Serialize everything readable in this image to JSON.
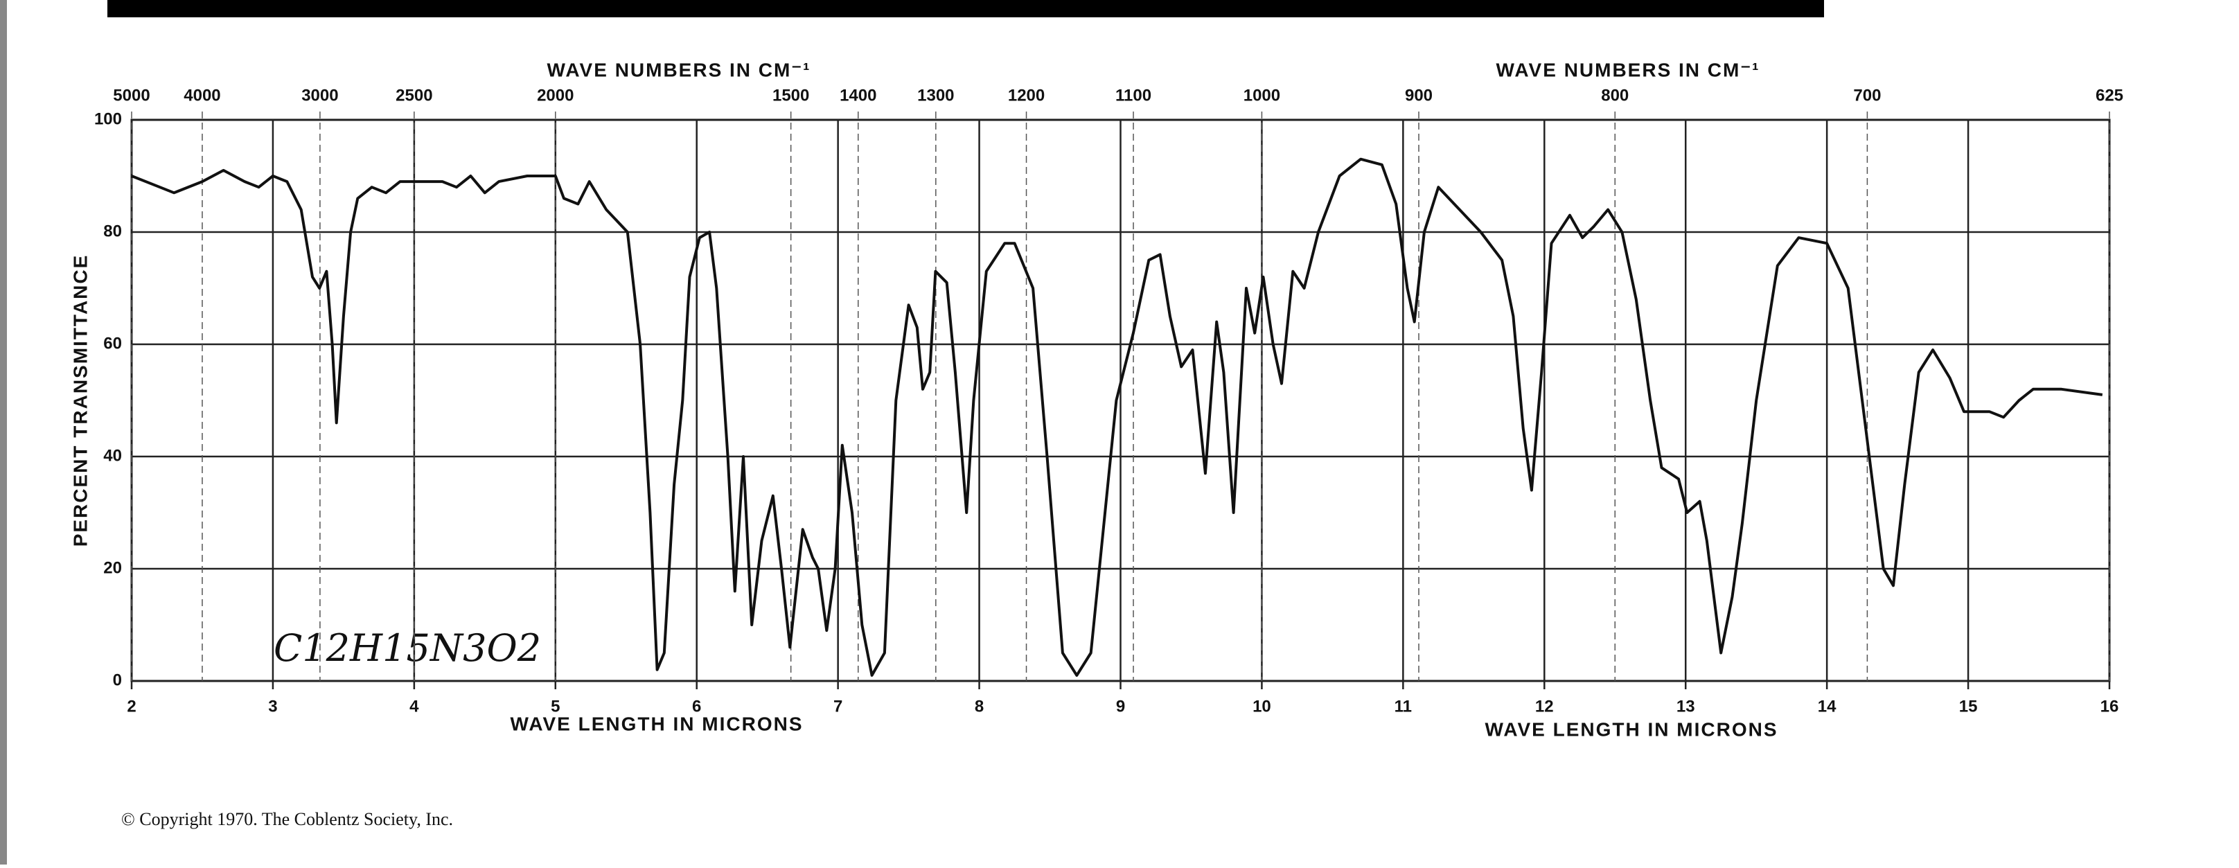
{
  "chart_data": {
    "type": "line",
    "xlabel": "WAVE LENGTH IN MICRONS",
    "x2label": "WAVE NUMBERS IN CM⁻¹",
    "ylabel": "PERCENT TRANSMITTANCE",
    "annotation": "C12H15N3O2",
    "copyright": "© Copyright 1970.  The Coblentz Society, Inc.",
    "xlim": [
      2,
      16
    ],
    "ylim": [
      0,
      100
    ],
    "xticks": [
      2,
      3,
      4,
      5,
      6,
      7,
      8,
      9,
      10,
      11,
      12,
      13,
      14,
      15,
      16
    ],
    "yticks": [
      0,
      20,
      40,
      60,
      80,
      100
    ],
    "x2ticks": [
      5000,
      4000,
      3000,
      2500,
      2000,
      1500,
      1400,
      1300,
      1200,
      1100,
      1000,
      900,
      800,
      700,
      625
    ],
    "grid": true,
    "color": "#111111",
    "x": [
      2.0,
      2.2,
      2.3,
      2.5,
      2.65,
      2.8,
      2.9,
      3.0,
      3.1,
      3.2,
      3.28,
      3.33,
      3.38,
      3.42,
      3.45,
      3.5,
      3.55,
      3.6,
      3.7,
      3.8,
      3.9,
      4.0,
      4.2,
      4.3,
      4.4,
      4.5,
      4.6,
      4.8,
      5.0,
      5.06,
      5.16,
      5.24,
      5.36,
      5.51,
      5.6,
      5.67,
      5.72,
      5.77,
      5.84,
      5.9,
      5.95,
      6.02,
      6.09,
      6.14,
      6.22,
      6.27,
      6.33,
      6.39,
      6.46,
      6.54,
      6.6,
      6.66,
      6.75,
      6.82,
      6.86,
      6.92,
      6.98,
      7.03,
      7.1,
      7.17,
      7.24,
      7.33,
      7.41,
      7.5,
      7.56,
      7.6,
      7.65,
      7.69,
      7.77,
      7.83,
      7.91,
      7.96,
      8.05,
      8.18,
      8.25,
      8.38,
      8.48,
      8.59,
      8.69,
      8.79,
      8.89,
      8.97,
      9.09,
      9.2,
      9.28,
      9.35,
      9.43,
      9.51,
      9.6,
      9.68,
      9.73,
      9.8,
      9.89,
      9.95,
      10.01,
      10.08,
      10.14,
      10.22,
      10.3,
      10.4,
      10.55,
      10.7,
      10.85,
      10.95,
      11.03,
      11.08,
      11.15,
      11.25,
      11.4,
      11.55,
      11.7,
      11.78,
      11.85,
      11.91,
      11.98,
      12.05,
      12.18,
      12.27,
      12.35,
      12.45,
      12.55,
      12.65,
      12.75,
      12.83,
      12.95,
      13.01,
      13.1,
      13.15,
      13.25,
      13.33,
      13.4,
      13.5,
      13.65,
      13.8,
      14.0,
      14.15,
      14.3,
      14.4,
      14.47,
      14.55,
      14.65,
      14.75,
      14.87,
      14.97,
      15.15,
      15.25,
      15.36,
      15.46,
      15.66,
      15.95
    ],
    "values": [
      90,
      88,
      87,
      89,
      91,
      89,
      88,
      90,
      89,
      84,
      72,
      70,
      73,
      60,
      46,
      65,
      80,
      86,
      88,
      87,
      89,
      89,
      89,
      88,
      90,
      87,
      89,
      90,
      90,
      86,
      85,
      89,
      84,
      80,
      60,
      30,
      2,
      5,
      35,
      50,
      72,
      79,
      80,
      70,
      40,
      16,
      40,
      10,
      25,
      33,
      20,
      6,
      27,
      22,
      20,
      9,
      20,
      42,
      30,
      10,
      1,
      5,
      50,
      67,
      63,
      52,
      55,
      73,
      71,
      55,
      30,
      50,
      73,
      78,
      78,
      70,
      40,
      5,
      1,
      5,
      30,
      50,
      62,
      75,
      76,
      65,
      56,
      59,
      37,
      64,
      55,
      30,
      70,
      62,
      72,
      60,
      53,
      73,
      70,
      80,
      90,
      93,
      92,
      85,
      70,
      64,
      80,
      88,
      84,
      80,
      75,
      65,
      45,
      34,
      55,
      78,
      83,
      79,
      81,
      84,
      80,
      68,
      50,
      38,
      36,
      30,
      32,
      25,
      5,
      15,
      28,
      50,
      74,
      79,
      78,
      70,
      40,
      20,
      17,
      35,
      55,
      59,
      54,
      48,
      48,
      47,
      50,
      52,
      52,
      51
    ]
  }
}
